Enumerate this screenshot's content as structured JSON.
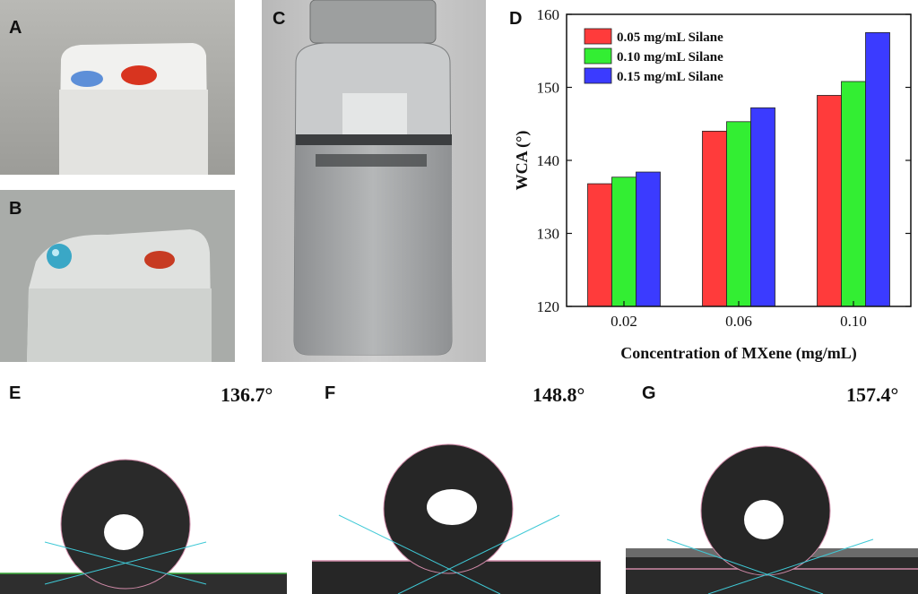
{
  "panels": {
    "a": "A",
    "b": "B",
    "c": "C",
    "d": "D",
    "e": "E",
    "f": "F",
    "g": "G"
  },
  "angles": {
    "e": "136.7°",
    "f": "148.8°",
    "g": "157.4°"
  },
  "chart_data": {
    "type": "bar",
    "title": "",
    "xlabel": "Concentration of MXene (mg/mL)",
    "ylabel": "WCA (°)",
    "categories": [
      "0.02",
      "0.06",
      "0.10"
    ],
    "ylim": [
      120,
      160
    ],
    "yticks": [
      "120",
      "130",
      "140",
      "150",
      "160"
    ],
    "legend_position": "top-left",
    "series": [
      {
        "name": "0.05 mg/mL Silane",
        "color": "#ff3b3b",
        "values": [
          136.8,
          144.0,
          148.9
        ]
      },
      {
        "name": "0.10 mg/mL Silane",
        "color": "#33ee33",
        "values": [
          137.7,
          145.3,
          150.8
        ]
      },
      {
        "name": "0.15 mg/mL Silane",
        "color": "#3b3bff",
        "values": [
          138.4,
          147.2,
          157.5
        ]
      }
    ]
  }
}
